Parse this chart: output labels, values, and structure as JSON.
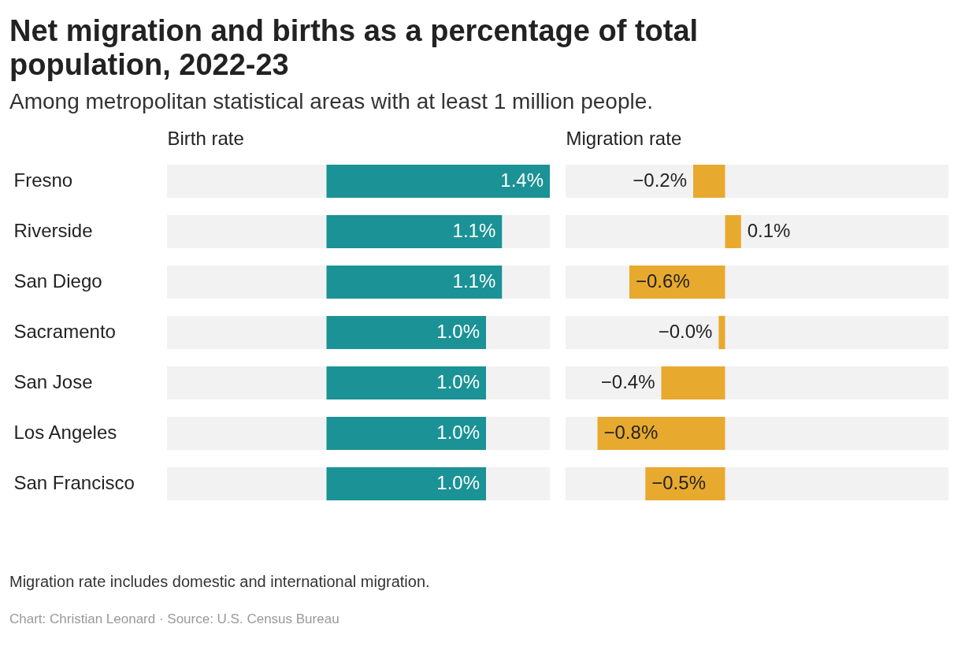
{
  "chart_data": [
    {
      "type": "bar",
      "orientation": "horizontal",
      "title": "Net migration and births as a percentage of total population, 2022-23",
      "subtitle": "Among metropolitan statistical areas with at least 1 million people.",
      "xlabel": "Birth rate",
      "categories": [
        "Fresno",
        "Riverside",
        "San Diego",
        "Sacramento",
        "San Jose",
        "Los Angeles",
        "San Francisco"
      ],
      "values": [
        1.4,
        1.1,
        1.1,
        1.0,
        1.0,
        1.0,
        1.0
      ],
      "value_labels": [
        "1.4%",
        "1.1%",
        "1.1%",
        "1.0%",
        "1.0%",
        "1.0%",
        "1.0%"
      ],
      "color": "#1a9296",
      "xlim": [
        -1.0,
        1.4
      ],
      "tick_labels": "y",
      "annotations": [
        "Migration rate includes domestic and international migration.",
        "Chart: Christian Leonard · Source: U.S. Census Bureau"
      ]
    },
    {
      "type": "bar",
      "orientation": "horizontal",
      "xlabel": "Migration rate",
      "categories": [
        null,
        null,
        null,
        null,
        null,
        null,
        null
      ],
      "values": [
        -0.2,
        0.1,
        -0.6,
        -0.04,
        -0.4,
        -0.8,
        -0.5
      ],
      "value_labels": [
        "−0.2%",
        "0.1%",
        "−0.6%",
        "−0.0%",
        "−0.4%",
        "−0.8%",
        "−0.5%"
      ],
      "color": "#e8a92f",
      "xlim": [
        -1.0,
        1.4
      ],
      "tick_labels": false
    }
  ]
}
